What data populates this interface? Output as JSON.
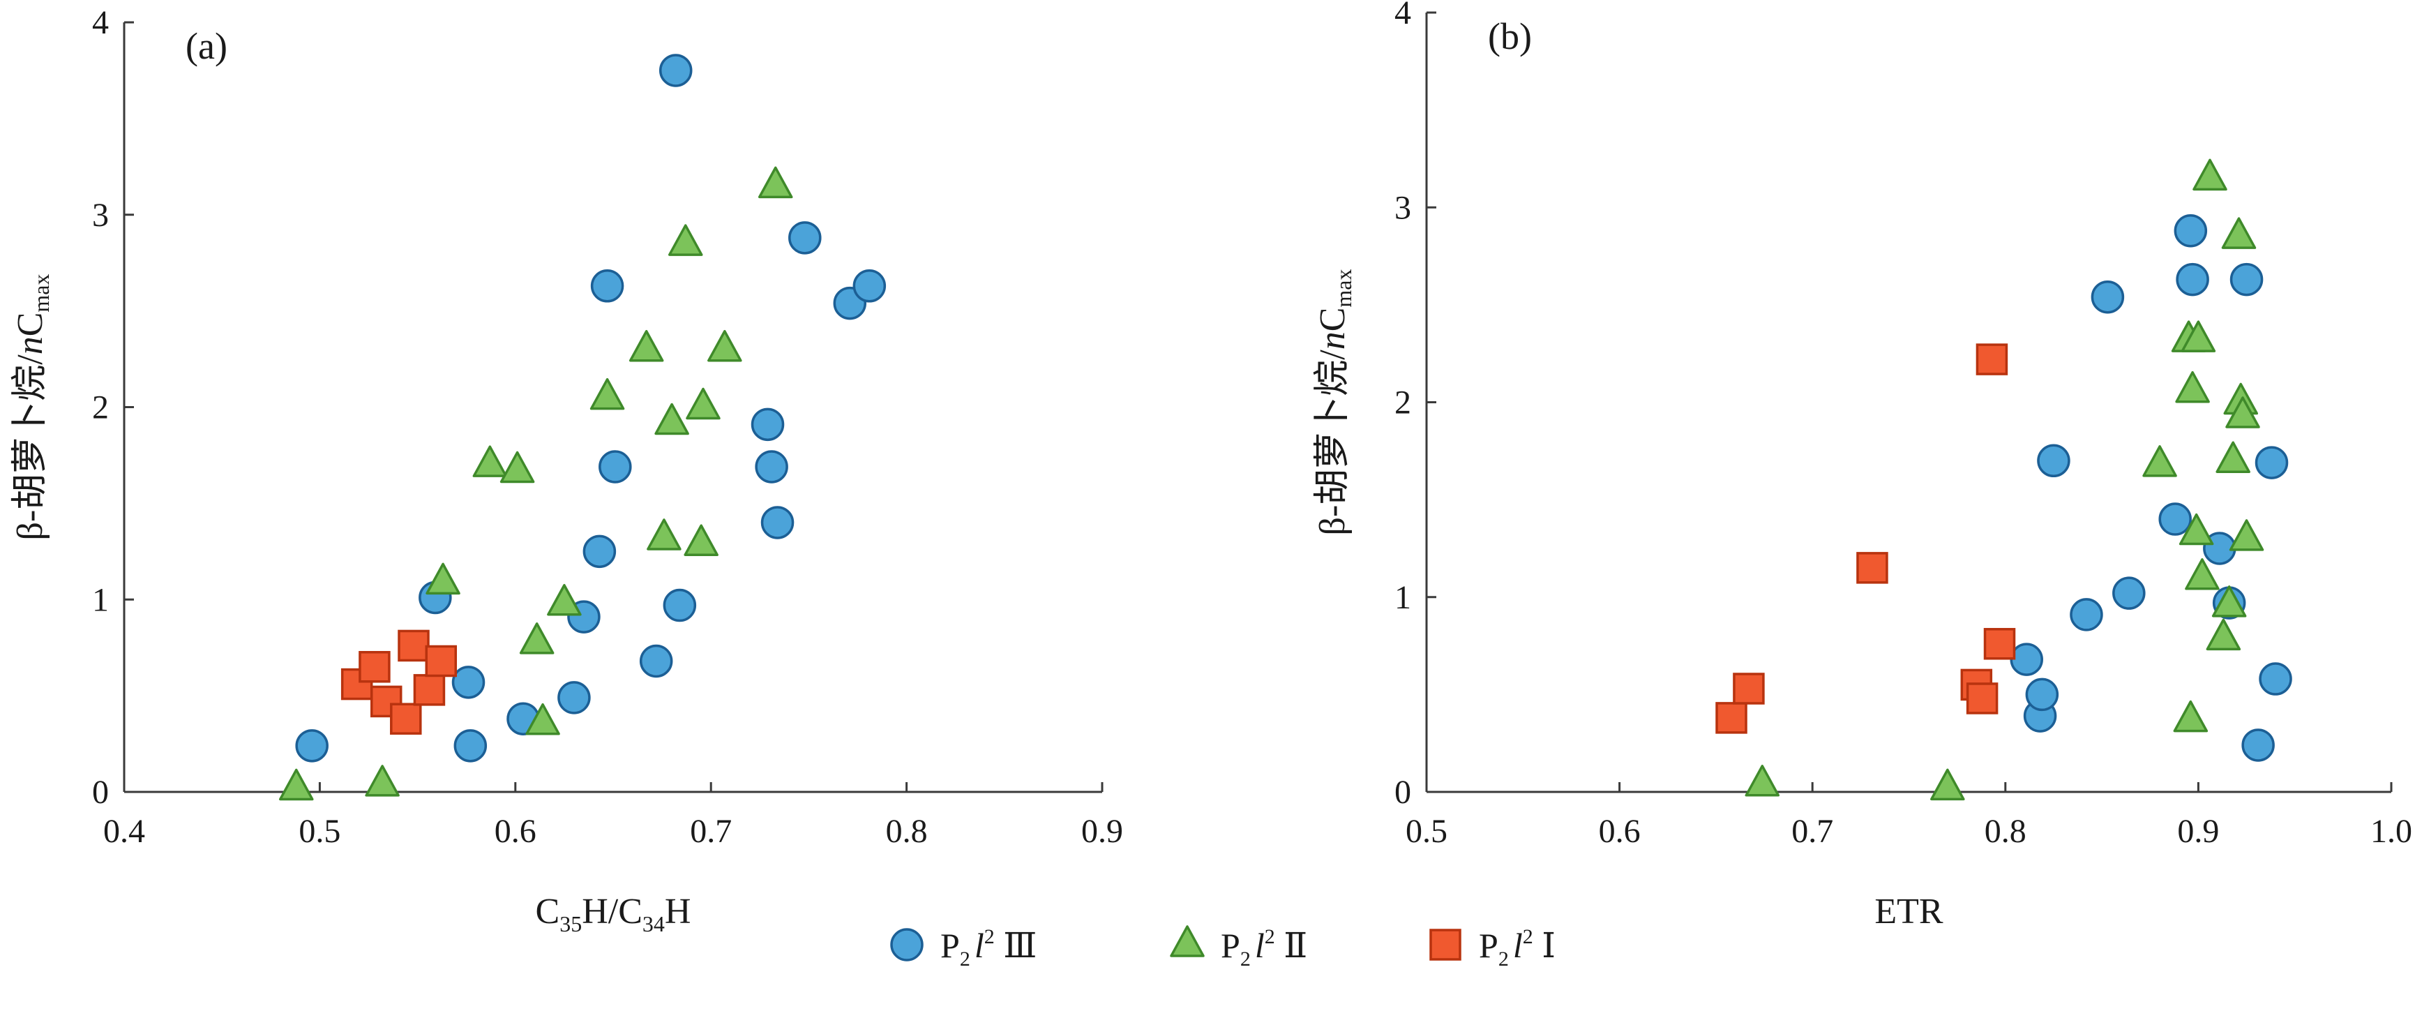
{
  "colors": {
    "circle_fill": "#4ba3d9",
    "circle_stroke": "#1c5f95",
    "triangle_fill": "#7cc35a",
    "triangle_stroke": "#3f8a2a",
    "square_fill": "#f0592f",
    "square_stroke": "#b8330f"
  },
  "legend": {
    "items": [
      {
        "marker": "circle",
        "label_sub": "2",
        "label_sup": "2",
        "label_roman": "Ⅲ"
      },
      {
        "marker": "triangle",
        "label_sub": "2",
        "label_sup": "2",
        "label_roman": "Ⅱ"
      },
      {
        "marker": "square",
        "label_sub": "2",
        "label_sup": "2",
        "label_roman": "Ⅰ"
      }
    ]
  },
  "chart_data": [
    {
      "type": "scatter",
      "panel_label": "(a)",
      "xlabel": "C35H/C34H",
      "ylabel": "β-胡萝卜烷/nCmax",
      "xlim": [
        0.4,
        0.9
      ],
      "ylim": [
        0,
        4
      ],
      "xticks": [
        "0.4",
        "0.5",
        "0.6",
        "0.7",
        "0.8",
        "0.9"
      ],
      "yticks": [
        "0",
        "1",
        "2",
        "3",
        "4"
      ],
      "series": [
        {
          "name": "P2l2Ⅲ",
          "marker": "circle",
          "points": [
            [
              0.496,
              0.24
            ],
            [
              0.559,
              1.01
            ],
            [
              0.576,
              0.57
            ],
            [
              0.577,
              0.24
            ],
            [
              0.604,
              0.38
            ],
            [
              0.63,
              0.49
            ],
            [
              0.635,
              0.91
            ],
            [
              0.643,
              1.25
            ],
            [
              0.647,
              2.63
            ],
            [
              0.651,
              1.69
            ],
            [
              0.672,
              0.68
            ],
            [
              0.682,
              3.75
            ],
            [
              0.684,
              0.97
            ],
            [
              0.729,
              1.91
            ],
            [
              0.731,
              1.69
            ],
            [
              0.734,
              1.4
            ],
            [
              0.748,
              2.88
            ],
            [
              0.771,
              2.54
            ],
            [
              0.781,
              2.63
            ]
          ]
        },
        {
          "name": "P2l2Ⅱ",
          "marker": "triangle",
          "points": [
            [
              0.488,
              0.02
            ],
            [
              0.532,
              0.04
            ],
            [
              0.563,
              1.09
            ],
            [
              0.587,
              1.7
            ],
            [
              0.601,
              1.67
            ],
            [
              0.611,
              0.78
            ],
            [
              0.614,
              0.36
            ],
            [
              0.625,
              0.98
            ],
            [
              0.647,
              2.05
            ],
            [
              0.667,
              2.3
            ],
            [
              0.676,
              1.32
            ],
            [
              0.68,
              1.92
            ],
            [
              0.687,
              2.85
            ],
            [
              0.695,
              1.29
            ],
            [
              0.696,
              2.0
            ],
            [
              0.707,
              2.3
            ],
            [
              0.733,
              3.15
            ]
          ]
        },
        {
          "name": "P2l2Ⅰ",
          "marker": "square",
          "points": [
            [
              0.519,
              0.56
            ],
            [
              0.528,
              0.65
            ],
            [
              0.534,
              0.47
            ],
            [
              0.544,
              0.38
            ],
            [
              0.548,
              0.76
            ],
            [
              0.556,
              0.53
            ],
            [
              0.562,
              0.68
            ]
          ]
        }
      ]
    },
    {
      "type": "scatter",
      "panel_label": "(b)",
      "xlabel": "ETR",
      "ylabel": "β-胡萝卜烷/nCmax",
      "xlim": [
        0.5,
        1.0
      ],
      "ylim": [
        0,
        4
      ],
      "xticks": [
        "0.5",
        "0.6",
        "0.7",
        "0.8",
        "0.9",
        "1.0"
      ],
      "yticks": [
        "0",
        "1",
        "2",
        "3",
        "4"
      ],
      "series": [
        {
          "name": "P2l2Ⅲ",
          "marker": "circle",
          "points": [
            [
              0.811,
              0.68
            ],
            [
              0.818,
              0.39
            ],
            [
              0.819,
              0.5
            ],
            [
              0.825,
              1.7
            ],
            [
              0.842,
              0.91
            ],
            [
              0.853,
              2.54
            ],
            [
              0.864,
              1.02
            ],
            [
              0.888,
              1.4
            ],
            [
              0.896,
              2.88
            ],
            [
              0.897,
              2.63
            ],
            [
              0.911,
              1.25
            ],
            [
              0.916,
              0.97
            ],
            [
              0.925,
              2.63
            ],
            [
              0.931,
              0.24
            ],
            [
              0.938,
              1.69
            ],
            [
              0.94,
              0.58
            ]
          ]
        },
        {
          "name": "P2l2Ⅱ",
          "marker": "triangle",
          "points": [
            [
              0.674,
              0.04
            ],
            [
              0.77,
              0.02
            ],
            [
              0.88,
              1.68
            ],
            [
              0.895,
              2.32
            ],
            [
              0.896,
              0.37
            ],
            [
              0.897,
              2.06
            ],
            [
              0.899,
              1.33
            ],
            [
              0.9,
              2.32
            ],
            [
              0.902,
              1.1
            ],
            [
              0.906,
              3.15
            ],
            [
              0.913,
              0.79
            ],
            [
              0.916,
              0.96
            ],
            [
              0.918,
              1.7
            ],
            [
              0.921,
              2.85
            ],
            [
              0.922,
              2.0
            ],
            [
              0.923,
              1.93
            ],
            [
              0.925,
              1.3
            ]
          ]
        },
        {
          "name": "P2l2Ⅰ",
          "marker": "square",
          "points": [
            [
              0.658,
              0.38
            ],
            [
              0.667,
              0.53
            ],
            [
              0.731,
              1.15
            ],
            [
              0.785,
              0.55
            ],
            [
              0.788,
              0.48
            ],
            [
              0.793,
              2.22
            ],
            [
              0.797,
              0.76
            ]
          ]
        }
      ]
    }
  ]
}
